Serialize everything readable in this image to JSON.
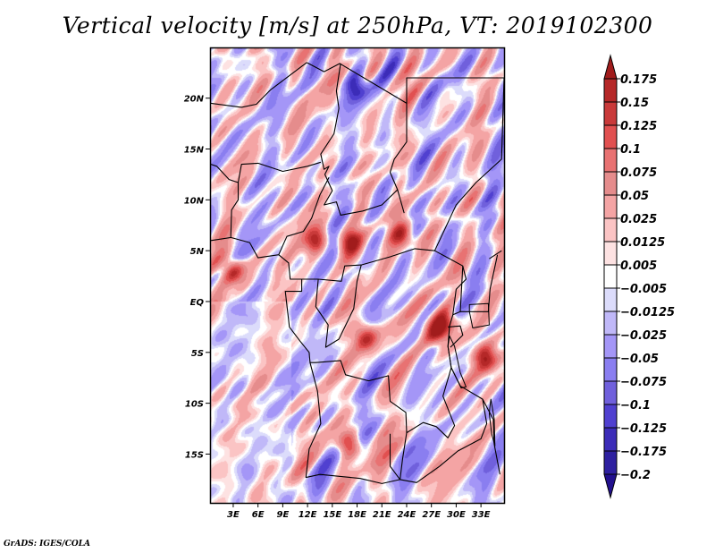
{
  "chart_data": {
    "type": "heatmap",
    "title": "Vertical velocity [m/s] at 250hPa, VT: 2019102300",
    "variable": "Vertical velocity",
    "units": "m/s",
    "level": "250hPa",
    "valid_time": "2019102300",
    "xlabel": "",
    "ylabel": "",
    "x_ticks": [
      "3E",
      "6E",
      "9E",
      "12E",
      "15E",
      "18E",
      "21E",
      "24E",
      "27E",
      "30E",
      "33E"
    ],
    "x_tick_values": [
      3,
      6,
      9,
      12,
      15,
      18,
      21,
      24,
      27,
      30,
      33
    ],
    "y_ticks": [
      "20N",
      "15N",
      "10N",
      "5N",
      "EQ",
      "5S",
      "10S",
      "15S"
    ],
    "y_tick_values": [
      20,
      15,
      10,
      5,
      0,
      -5,
      -10,
      -15
    ],
    "xlim": [
      0.3,
      35.8
    ],
    "ylim": [
      -19.8,
      24.9
    ],
    "grid": false,
    "map_region": "Central Africa",
    "colorbar": {
      "placement": "right",
      "levels": [
        "0.175",
        "0.15",
        "0.125",
        "0.1",
        "0.075",
        "0.05",
        "0.025",
        "0.0125",
        "0.005",
        "-0.005",
        "-0.0125",
        "-0.025",
        "-0.05",
        "-0.075",
        "-0.1",
        "-0.125",
        "-0.175",
        "-0.2"
      ],
      "colors": [
        "#a11c1c",
        "#b52828",
        "#c93a3a",
        "#e15050",
        "#e87272",
        "#e58c8c",
        "#f4a4a4",
        "#fbc4c4",
        "#fde2e2",
        "#ffffff",
        "#dcdcfb",
        "#c0b8f8",
        "#a496f7",
        "#8a7ef0",
        "#7060dc",
        "#5040d0",
        "#3c2cb8",
        "#2e20a0",
        "#22108e"
      ],
      "extend": "both"
    },
    "features": [
      {
        "name": "strong ascent cluster",
        "lat": 6,
        "lon": 13,
        "sign": "positive"
      },
      {
        "name": "strong ascent cluster",
        "lat": 6,
        "lon": 17,
        "sign": "positive"
      },
      {
        "name": "strong ascent cluster",
        "lat": 6.5,
        "lon": 23.5,
        "sign": "positive"
      },
      {
        "name": "strong ascent cluster",
        "lat": 3,
        "lon": 3,
        "sign": "positive"
      },
      {
        "name": "strong ascent cluster",
        "lat": -2,
        "lon": 28.5,
        "sign": "positive"
      },
      {
        "name": "strong ascent cluster",
        "lat": -3,
        "lon": 27.5,
        "sign": "positive"
      },
      {
        "name": "strong ascent cluster",
        "lat": -3.5,
        "lon": 19,
        "sign": "positive"
      },
      {
        "name": "strong ascent cluster",
        "lat": -5.5,
        "lon": 33.5,
        "sign": "positive"
      },
      {
        "name": "strong ascent streak",
        "lat": -14,
        "lon": 17,
        "sign": "positive"
      },
      {
        "name": "descent band",
        "lat": 21,
        "lon": 18,
        "sign": "negative"
      }
    ]
  },
  "footer": {
    "credit": "GrADS: IGES/COLA"
  }
}
